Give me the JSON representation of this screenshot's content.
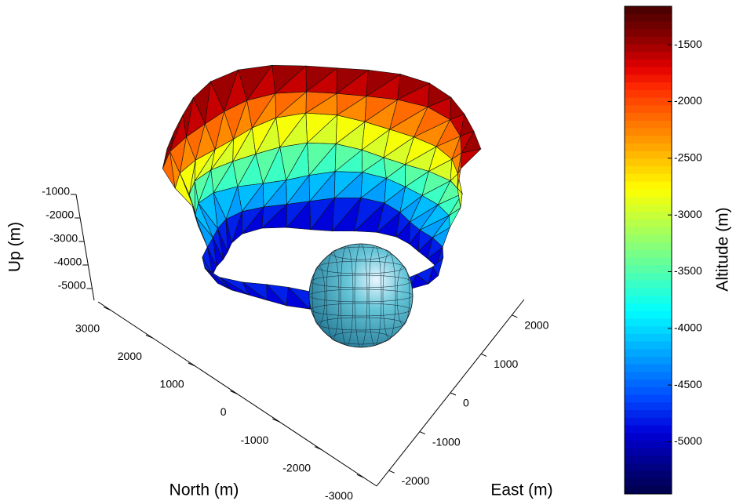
{
  "chart_data": {
    "type": "surface3d",
    "xlabel": "North (m)",
    "ylabel": "East (m)",
    "zlabel": "Up (m)",
    "xlim": [
      -3300,
      3300
    ],
    "xticks": [
      3000,
      2000,
      1000,
      0,
      -1000,
      -2000,
      -3000
    ],
    "ylim": [
      -2400,
      2400
    ],
    "yticks": [
      2000,
      1000,
      0,
      -1000,
      -2000
    ],
    "zlim": [
      -5500,
      -1000
    ],
    "zticks": [
      -1000,
      -2000,
      -3000,
      -4000,
      -5000
    ],
    "colormap": "jet",
    "colorbar": {
      "label": "Altitude (m)",
      "clim": [
        -5460,
        -1160
      ],
      "ticks": [
        -1500,
        -2000,
        -2500,
        -3000,
        -3500,
        -4000,
        -4500,
        -5000
      ]
    }
  }
}
